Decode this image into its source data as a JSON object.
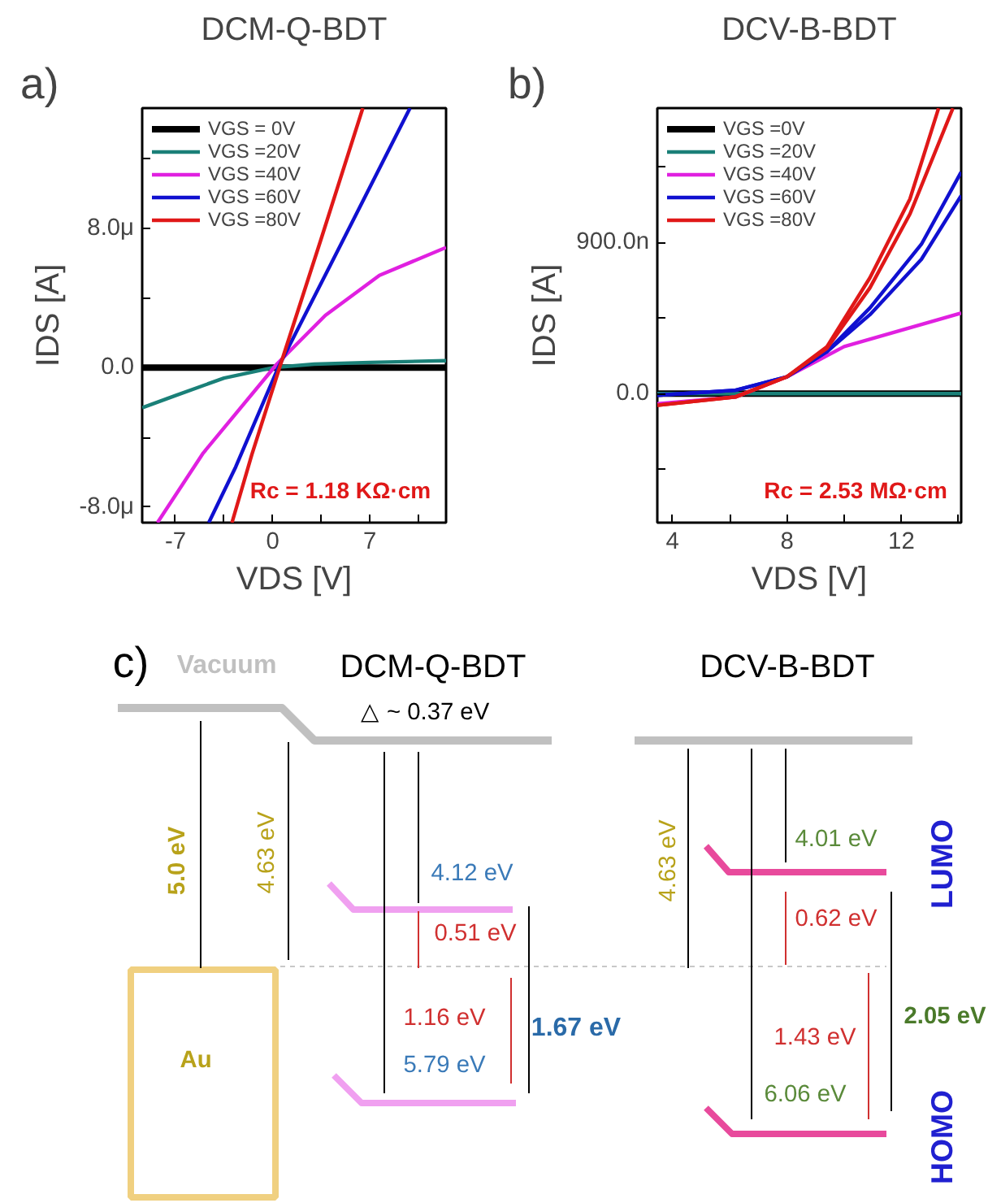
{
  "chart_data": [
    {
      "type": "line",
      "title": "DCM-Q-BDT",
      "xlabel": "VDS [V]",
      "ylabel": "IDS [A]",
      "annotations": [
        "a)",
        "Rc = 1.18 KΩ·cm"
      ],
      "xlim": [
        -9.4,
        12.5
      ],
      "ylim": [
        -8.9,
        14.9
      ],
      "xticks": [
        -7,
        {
          "value": -3.5,
          "label": null
        },
        0,
        {
          "value": 3.5,
          "label": null
        },
        7,
        {
          "value": 10.5,
          "label": null
        }
      ],
      "yticks": [
        {
          "value": -8,
          "label": "-8.0μ"
        },
        {
          "value": -4,
          "label": null
        },
        {
          "value": 0,
          "label": "0.0"
        },
        {
          "value": 4,
          "label": null
        },
        {
          "value": 8,
          "label": "8.0μ"
        },
        {
          "value": 12,
          "label": null
        }
      ],
      "legend": "top left",
      "grid": false,
      "series": [
        {
          "name": "VGS = 0V",
          "color": "#000000",
          "x": [
            -9.4,
            12.5
          ],
          "values": [
            0,
            0
          ]
        },
        {
          "name": "VGS =20V",
          "color": "#1a8078",
          "x": [
            -9.4,
            -7,
            -3.5,
            0,
            3,
            7,
            12.5
          ],
          "values": [
            -2.3,
            -1.6,
            -0.6,
            0,
            0.2,
            0.3,
            0.4
          ]
        },
        {
          "name": "VGS =40V",
          "color": "#e020e0",
          "x": [
            -8.3,
            -5,
            0.3,
            3.8,
            7.7,
            12.5
          ],
          "values": [
            -8.9,
            -4.9,
            0.2,
            3.0,
            5.3,
            6.9
          ]
        },
        {
          "name": "VGS =60V",
          "color": "#1010d0",
          "x": [
            -4.6,
            -2.66,
            0.4,
            5,
            9.9
          ],
          "values": [
            -8.9,
            -5.7,
            0,
            7.2,
            14.9
          ]
        },
        {
          "name": "VGS =80V",
          "color": "#e01818",
          "x": [
            -2.93,
            -1.5,
            0.5,
            3.5,
            6.5
          ],
          "values": [
            -8.9,
            -5,
            0,
            7.4,
            14.9
          ]
        }
      ]
    },
    {
      "type": "line",
      "title": "DCV-B-BDT",
      "xlabel": "VDS [V]",
      "ylabel": "IDS [A]",
      "annotations": [
        "b)",
        "Rc = 2.53 MΩ·cm"
      ],
      "xlim": [
        3.47,
        14.09
      ],
      "ylim": [
        -769,
        1701
      ],
      "xticks": [
        4,
        {
          "value": 6,
          "label": null
        },
        8,
        {
          "value": 10,
          "label": null
        },
        12,
        {
          "value": 14,
          "label": null
        }
      ],
      "yticks": [
        {
          "value": -450,
          "label": null
        },
        {
          "value": 0,
          "label": "0.0"
        },
        {
          "value": 450,
          "label": null
        },
        {
          "value": 900,
          "label": "900.0n"
        },
        {
          "value": 1350,
          "label": null
        }
      ],
      "legend": "top left",
      "grid": false,
      "series": [
        {
          "name": "VGS =0V",
          "color": "#000000",
          "x": [
            3.47,
            14.09
          ],
          "values": [
            0,
            0
          ]
        },
        {
          "name": "VGS =20V",
          "color": "#1a8078",
          "x": [
            3.47,
            14.09
          ],
          "values": [
            0,
            0
          ]
        },
        {
          "name": "VGS =40V",
          "color": "#e020e0",
          "x": [
            3.47,
            6.2,
            8,
            10,
            14.09
          ],
          "values": [
            -60,
            -20,
            100,
            280,
            480
          ]
        },
        {
          "name": "VGS =60V",
          "color": "#1010d0",
          "x": [
            3.47,
            6.2,
            8,
            9.4,
            10.9,
            12.7,
            14.09
          ],
          "values": [
            -10,
            20,
            100,
            250,
            510,
            890,
            1320
          ]
        },
        {
          "color": "#1010d0",
          "x": [
            3.47,
            6.2,
            8,
            9.4,
            10.9,
            12.7,
            14.09
          ],
          "values": [
            -10,
            20,
            100,
            250,
            470,
            800,
            1180
          ]
        },
        {
          "name": "VGS =80V",
          "color": "#e01818",
          "x": [
            3.47,
            6.2,
            8,
            9.4,
            10.9,
            12.3,
            13.3
          ],
          "values": [
            -70,
            -20,
            100,
            280,
            690,
            1160,
            1700
          ]
        },
        {
          "color": "#e01818",
          "x": [
            3.47,
            6.2,
            8,
            9.4,
            10.9,
            12.3,
            13.8
          ],
          "values": [
            -70,
            -20,
            100,
            270,
            630,
            1070,
            1700
          ]
        }
      ]
    },
    {
      "type": "other",
      "annotations": [
        "c)",
        "Vacuum",
        "DCM-Q-BDT",
        "DCV-B-BDT",
        "△ ~ 0.37 eV",
        "5.0 eV",
        "4.63 eV",
        "4.12 eV",
        "0.51 eV",
        "1.16 eV",
        "5.79 eV",
        "1.67 eV",
        "Au",
        "4.63 eV",
        "4.01 eV",
        "0.62 eV",
        "1.43 eV",
        "6.06 eV",
        "2.05 eV",
        "LUMO",
        "HOMO"
      ]
    }
  ]
}
